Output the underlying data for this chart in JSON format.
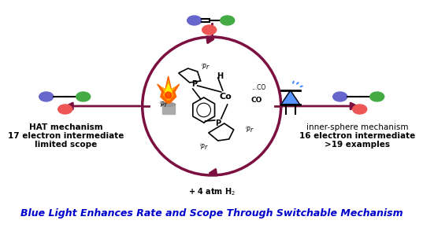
{
  "title": "Blue Light Enhances Rate and Scope Through Switchable Mechanism",
  "title_color": "#0000CC",
  "title_fontsize": 9.0,
  "background_color": "#ffffff",
  "arrow_color": "#7B1040",
  "left_text_lines": [
    "HAT mechanism",
    "17 electron intermediate",
    "limited scope"
  ],
  "right_text_lines": [
    "inner-sphere mechanism",
    "16 electron intermediate",
    ">19 examples"
  ],
  "mol_colors": [
    "#6666CC",
    "#EE5555",
    "#44AA44"
  ],
  "flame_colors": [
    "#FF6600",
    "#FFCC00",
    "#FF8800"
  ],
  "led_color": "#4488FF",
  "led_glow": "#AADDFF"
}
